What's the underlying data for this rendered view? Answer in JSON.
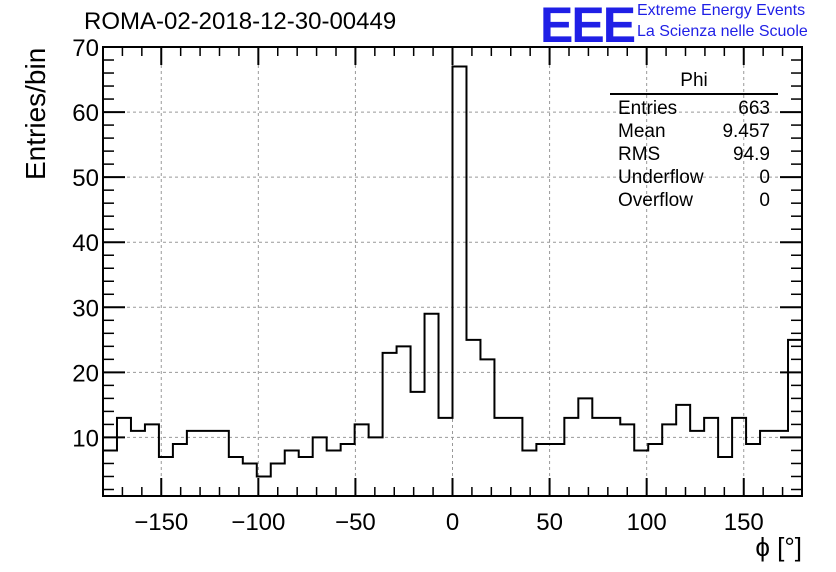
{
  "chart_data": {
    "type": "histogram",
    "title": "ROMA-02-2018-12-30-00449",
    "xlabel": "ϕ [°]",
    "ylabel": "Entries/bin",
    "xlim": [
      -180,
      180
    ],
    "ylim": [
      1,
      70
    ],
    "bin_width": 7.2,
    "x_ticks": [
      -150,
      -100,
      -50,
      0,
      50,
      100,
      150
    ],
    "x_tick_labels": [
      "−150",
      "−100",
      "−50",
      "0",
      "50",
      "100",
      "150"
    ],
    "y_ticks": [
      10,
      20,
      30,
      40,
      50,
      60,
      70
    ],
    "y_tick_labels": [
      "10",
      "20",
      "30",
      "40",
      "50",
      "60",
      "70"
    ],
    "grid": true,
    "values": [
      8,
      13,
      11,
      12,
      7,
      9,
      11,
      11,
      11,
      7,
      6,
      4,
      6,
      8,
      7,
      10,
      8,
      9,
      12,
      10,
      23,
      24,
      17,
      29,
      13,
      67,
      25,
      22,
      13,
      13,
      8,
      9,
      9,
      13,
      16,
      13,
      13,
      12,
      8,
      9,
      12,
      15,
      11,
      13,
      7,
      13,
      9,
      11,
      11,
      25
    ],
    "stats": {
      "title": "Phi",
      "rows": [
        {
          "label": "Entries",
          "value": "663"
        },
        {
          "label": "Mean",
          "value": "9.457"
        },
        {
          "label": "RMS",
          "value": "94.9"
        },
        {
          "label": "Underflow",
          "value": "0"
        },
        {
          "label": "Overflow",
          "value": "0"
        }
      ]
    }
  },
  "logo": {
    "text": "EEE",
    "line1": "Extreme Energy Events",
    "line2": "La Scienza nelle Scuole",
    "color": "#1f1fe6"
  }
}
